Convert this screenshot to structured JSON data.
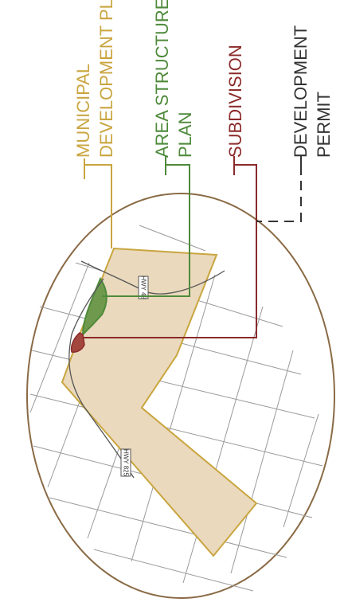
{
  "labels": {
    "mdp_line1": "MUNICIPAL",
    "mdp_line2": "DEVELOPMENT PLAN",
    "asp_line1": "AREA STRUCTURE",
    "asp_line2": "PLAN",
    "subdivision": "SUBDIVISION",
    "dp_line1": "DEVELOPMENT",
    "dp_line2": "PERMIT"
  },
  "highways": {
    "hwy_a": "HWY 43",
    "hwy_b": "HWY 825"
  },
  "colors": {
    "mdp": "#c9a53f",
    "mdp_fill": "#ead9bd",
    "asp": "#4e8a3a",
    "asp_fill": "#6f9a4e",
    "subdivision": "#8b2a2a",
    "subdivision_fill": "#a2463e",
    "dp": "#333333",
    "circle": "#8a6a45",
    "roads": "#9a9a9a"
  }
}
